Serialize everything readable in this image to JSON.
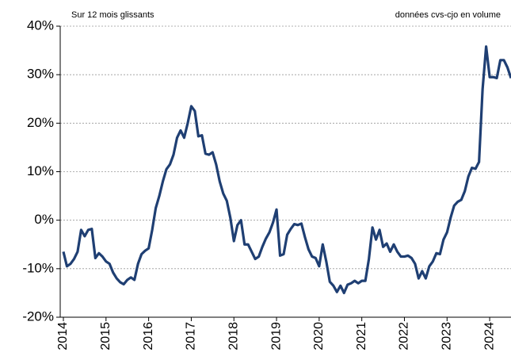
{
  "chart_data": {
    "type": "line",
    "annotations": [
      "Sur 12 mois glissants",
      "données cvs-cjo en volume"
    ],
    "categories": [
      "2014",
      null,
      null,
      null,
      null,
      null,
      null,
      null,
      null,
      null,
      null,
      null,
      "2015",
      null,
      null,
      null,
      null,
      null,
      null,
      null,
      null,
      null,
      null,
      null,
      "2016",
      null,
      null,
      null,
      null,
      null,
      null,
      null,
      null,
      null,
      null,
      null,
      "2017",
      null,
      null,
      null,
      null,
      null,
      null,
      null,
      null,
      null,
      null,
      null,
      "2018",
      null,
      null,
      null,
      null,
      null,
      null,
      null,
      null,
      null,
      null,
      null,
      "2019",
      null,
      null,
      null,
      null,
      null,
      null,
      null,
      null,
      null,
      null,
      null,
      "2020",
      null,
      null,
      null,
      null,
      null,
      null,
      null,
      null,
      null,
      null,
      null,
      "2021",
      null,
      null,
      null,
      null,
      null,
      null,
      null,
      null,
      null,
      null,
      null,
      "2022",
      null,
      null,
      null,
      null,
      null,
      null,
      null,
      null,
      null,
      null,
      null,
      "2023",
      null,
      null,
      null,
      null,
      null,
      null,
      null,
      null,
      null,
      null,
      null,
      "2024",
      null,
      null,
      null,
      null,
      null,
      null
    ],
    "values": [
      -6.5,
      -9.5,
      -9,
      -8,
      -6.5,
      -2,
      -3.3,
      -2,
      -1.8,
      -7.8,
      -6.8,
      -7.5,
      -8.5,
      -9,
      -10.8,
      -12,
      -12.8,
      -13.2,
      -12.3,
      -11.8,
      -12.3,
      -9,
      -7,
      -6.3,
      -5.8,
      -2,
      2.5,
      5,
      8,
      10.5,
      11.5,
      13.5,
      17,
      18.5,
      17,
      20,
      23.5,
      22.5,
      17.3,
      17.5,
      13.7,
      13.5,
      14,
      11.5,
      8,
      5.5,
      4,
      0.5,
      -4.3,
      -1,
      0,
      -5,
      -5,
      -6.5,
      -8,
      -7.5,
      -5.5,
      -3.8,
      -2.5,
      -0.5,
      2.2,
      -7.3,
      -7,
      -3,
      -1.8,
      -0.8,
      -1,
      -0.7,
      -3.5,
      -6,
      -7.5,
      -7.8,
      -9.5,
      -5,
      -8.5,
      -12.7,
      -13.5,
      -14.8,
      -13.5,
      -15,
      -13.3,
      -13,
      -12.5,
      -13,
      -12.5,
      -12.5,
      -8,
      -1.5,
      -4,
      -2,
      -5.5,
      -4.8,
      -6.5,
      -5,
      -6.5,
      -7.5,
      -7.5,
      -7.3,
      -7.8,
      -9,
      -12,
      -10.5,
      -12,
      -9.5,
      -8.5,
      -6.8,
      -7,
      -4,
      -2.5,
      0.5,
      3,
      3.8,
      4.2,
      6,
      9,
      10.8,
      10.6,
      12,
      27,
      35.8,
      29.5,
      29.5,
      29.3,
      33,
      33,
      31.5,
      29.3
    ],
    "color": "#1f3f73",
    "ylim": [
      -20,
      40
    ],
    "yticks": [
      {
        "value": -20,
        "label": "-20%"
      },
      {
        "value": -10,
        "label": "-10%"
      },
      {
        "value": 0,
        "label": "0%"
      },
      {
        "value": 10,
        "label": "10%"
      },
      {
        "value": 20,
        "label": "20%"
      },
      {
        "value": 30,
        "label": "30%"
      },
      {
        "value": 40,
        "label": "40%"
      }
    ],
    "grid": true
  }
}
